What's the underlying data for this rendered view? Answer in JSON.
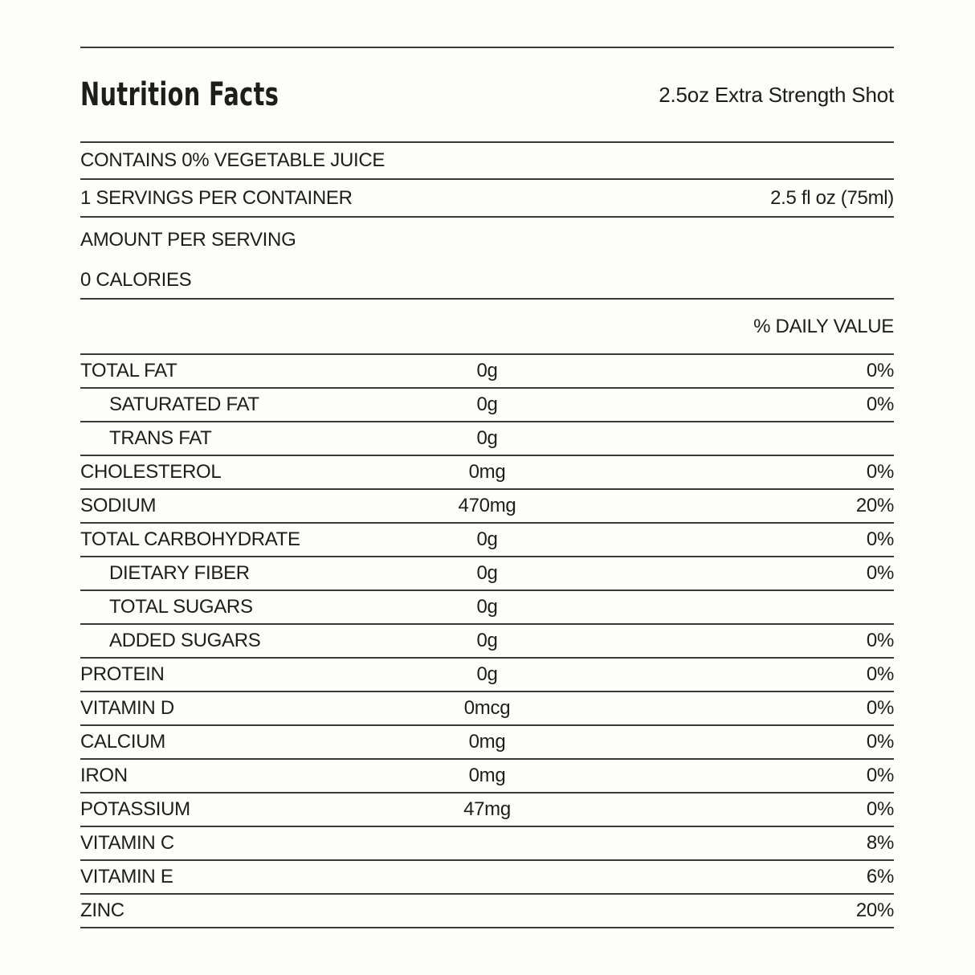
{
  "colors": {
    "text": "#1d1d1b",
    "rule": "#3a3a38",
    "background": "#fdfdfb"
  },
  "label": {
    "title": "Nutrition Facts",
    "subtitle": "2.5oz Extra Strength Shot",
    "contains": "CONTAINS 0% VEGETABLE JUICE",
    "servings_per_container": "1 SERVINGS PER CONTAINER",
    "serving_size": "2.5 fl oz (75ml)",
    "amount_per_serving": "AMOUNT PER SERVING",
    "calories": "0 CALORIES",
    "daily_value_header": "% DAILY VALUE",
    "rows": [
      {
        "name": "TOTAL FAT",
        "amount": "0g",
        "daily_value": "0%",
        "indent": false
      },
      {
        "name": "SATURATED FAT",
        "amount": "0g",
        "daily_value": "0%",
        "indent": true
      },
      {
        "name": "TRANS FAT",
        "amount": "0g",
        "daily_value": "",
        "indent": true
      },
      {
        "name": "CHOLESTEROL",
        "amount": "0mg",
        "daily_value": "0%",
        "indent": false
      },
      {
        "name": "SODIUM",
        "amount": "470mg",
        "daily_value": "20%",
        "indent": false
      },
      {
        "name": "TOTAL CARBOHYDRATE",
        "amount": "0g",
        "daily_value": "0%",
        "indent": false
      },
      {
        "name": "DIETARY FIBER",
        "amount": "0g",
        "daily_value": "0%",
        "indent": true
      },
      {
        "name": "TOTAL SUGARS",
        "amount": "0g",
        "daily_value": "",
        "indent": true
      },
      {
        "name": "ADDED SUGARS",
        "amount": "0g",
        "daily_value": "0%",
        "indent": true
      },
      {
        "name": "PROTEIN",
        "amount": "0g",
        "daily_value": "0%",
        "indent": false
      },
      {
        "name": "VITAMIN D",
        "amount": "0mcg",
        "daily_value": "0%",
        "indent": false
      },
      {
        "name": "CALCIUM",
        "amount": "0mg",
        "daily_value": "0%",
        "indent": false
      },
      {
        "name": "IRON",
        "amount": "0mg",
        "daily_value": "0%",
        "indent": false
      },
      {
        "name": "POTASSIUM",
        "amount": "47mg",
        "daily_value": "0%",
        "indent": false
      },
      {
        "name": "VITAMIN C",
        "amount": "",
        "daily_value": "8%",
        "indent": false
      },
      {
        "name": "VITAMIN E",
        "amount": "",
        "daily_value": "6%",
        "indent": false
      },
      {
        "name": "ZINC",
        "amount": "",
        "daily_value": "20%",
        "indent": false
      }
    ]
  }
}
